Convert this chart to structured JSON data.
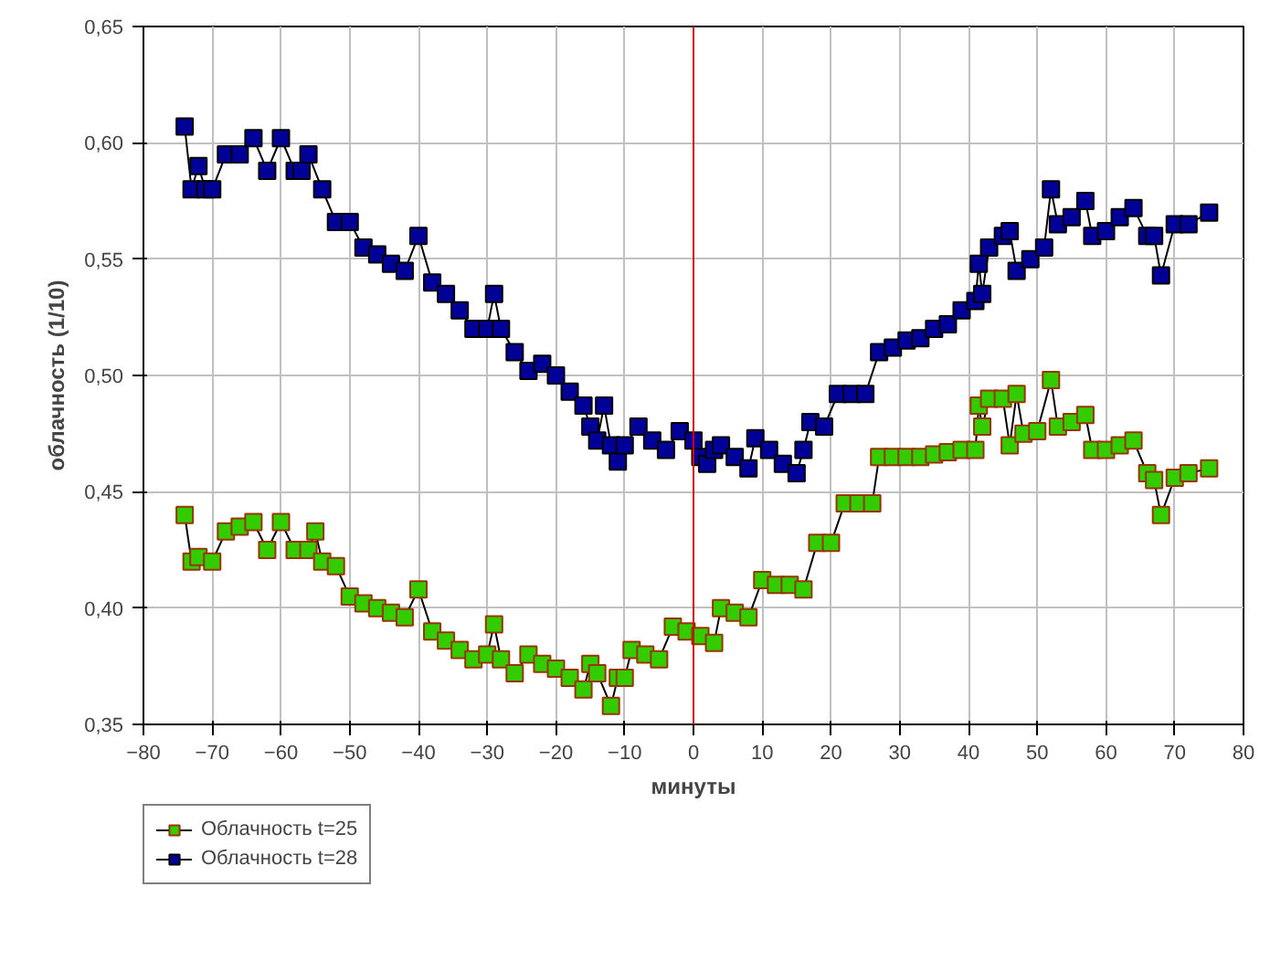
{
  "chart_data": {
    "type": "line",
    "xlabel": "минуты",
    "ylabel": "облачность (1/10)",
    "xlim": [
      -80,
      80
    ],
    "xticks": [
      -80,
      -70,
      -60,
      -50,
      -40,
      -30,
      -20,
      -10,
      0,
      10,
      20,
      30,
      40,
      50,
      60,
      70,
      80
    ],
    "ylim": [
      0.35,
      0.65
    ],
    "yticks": [
      {
        "value": 0.35,
        "label": "0,35"
      },
      {
        "value": 0.4,
        "label": "0,40"
      },
      {
        "value": 0.45,
        "label": "0,45"
      },
      {
        "value": 0.5,
        "label": "0,50"
      },
      {
        "value": 0.55,
        "label": "0,55"
      },
      {
        "value": 0.6,
        "label": "0,60"
      },
      {
        "value": 0.65,
        "label": "0,65"
      }
    ],
    "grid": true,
    "legend": "bottom left",
    "marker": "square",
    "line_style": "solid",
    "ref_lines": [
      {
        "axis": "x",
        "value": 0,
        "color": "#cc0000"
      }
    ],
    "series": [
      {
        "name": "Облачность t=25",
        "color": "#33cc00",
        "x": [
          -74,
          -73,
          -72,
          -70,
          -68,
          -66,
          -64,
          -62,
          -60,
          -58,
          -56,
          -55,
          -54,
          -52,
          -50,
          -48,
          -46,
          -44,
          -42,
          -40,
          -38,
          -36,
          -34,
          -32,
          -30,
          -29,
          -28,
          -26,
          -24,
          -22,
          -20,
          -18,
          -16,
          -15,
          -14,
          -12,
          -11,
          -10,
          -9,
          -7,
          -5,
          -3,
          -1,
          1,
          3,
          4,
          6,
          8,
          10,
          12,
          14,
          16,
          18,
          20,
          22,
          24,
          26,
          27,
          29,
          31,
          33,
          35,
          37,
          39,
          41,
          41.5,
          42,
          43,
          45,
          46,
          47,
          48,
          50,
          52,
          53,
          55,
          57,
          58,
          60,
          62,
          64,
          66,
          67,
          68,
          70,
          72,
          75
        ],
        "values": [
          0.44,
          0.42,
          0.422,
          0.42,
          0.433,
          0.435,
          0.437,
          0.425,
          0.437,
          0.425,
          0.425,
          0.433,
          0.42,
          0.418,
          0.405,
          0.402,
          0.4,
          0.398,
          0.396,
          0.408,
          0.39,
          0.386,
          0.382,
          0.378,
          0.38,
          0.393,
          0.378,
          0.372,
          0.38,
          0.376,
          0.374,
          0.37,
          0.365,
          0.376,
          0.372,
          0.358,
          0.37,
          0.37,
          0.382,
          0.38,
          0.378,
          0.392,
          0.39,
          0.388,
          0.385,
          0.4,
          0.398,
          0.396,
          0.412,
          0.41,
          0.41,
          0.408,
          0.428,
          0.428,
          0.445,
          0.445,
          0.445,
          0.465,
          0.465,
          0.465,
          0.465,
          0.466,
          0.467,
          0.468,
          0.468,
          0.487,
          0.478,
          0.49,
          0.49,
          0.47,
          0.492,
          0.475,
          0.476,
          0.498,
          0.478,
          0.48,
          0.483,
          0.468,
          0.468,
          0.47,
          0.472,
          0.458,
          0.455,
          0.44,
          0.456,
          0.458,
          0.46
        ]
      },
      {
        "name": "Облачность t=28",
        "color": "#000099",
        "x": [
          -74,
          -73,
          -72,
          -71,
          -70,
          -68,
          -66,
          -64,
          -62,
          -60,
          -58,
          -57,
          -56,
          -54,
          -52,
          -50,
          -48,
          -46,
          -44,
          -42,
          -40,
          -38,
          -36,
          -34,
          -32,
          -30,
          -29,
          -28,
          -26,
          -24,
          -22,
          -20,
          -18,
          -16,
          -15,
          -14,
          -13,
          -12,
          -11,
          -10,
          -8,
          -6,
          -4,
          -2,
          0,
          1,
          2,
          3,
          4,
          6,
          8,
          9,
          11,
          13,
          15,
          16,
          17,
          19,
          21,
          23,
          25,
          27,
          29,
          31,
          33,
          35,
          37,
          39,
          41,
          41.5,
          42,
          43,
          45,
          46,
          47,
          49,
          51,
          52,
          53,
          55,
          57,
          58,
          60,
          62,
          64,
          66,
          67,
          68,
          70,
          72,
          75
        ],
        "values": [
          0.607,
          0.58,
          0.59,
          0.58,
          0.58,
          0.595,
          0.595,
          0.602,
          0.588,
          0.602,
          0.588,
          0.588,
          0.595,
          0.58,
          0.566,
          0.566,
          0.555,
          0.552,
          0.548,
          0.545,
          0.56,
          0.54,
          0.535,
          0.528,
          0.52,
          0.52,
          0.535,
          0.52,
          0.51,
          0.502,
          0.505,
          0.5,
          0.493,
          0.487,
          0.478,
          0.472,
          0.487,
          0.47,
          0.463,
          0.47,
          0.478,
          0.472,
          0.468,
          0.476,
          0.472,
          0.465,
          0.462,
          0.468,
          0.47,
          0.465,
          0.46,
          0.473,
          0.468,
          0.462,
          0.458,
          0.468,
          0.48,
          0.478,
          0.492,
          0.492,
          0.492,
          0.51,
          0.512,
          0.515,
          0.516,
          0.52,
          0.522,
          0.528,
          0.532,
          0.548,
          0.535,
          0.555,
          0.56,
          0.562,
          0.545,
          0.55,
          0.555,
          0.58,
          0.565,
          0.568,
          0.575,
          0.56,
          0.562,
          0.568,
          0.572,
          0.56,
          0.56,
          0.543,
          0.565,
          0.565,
          0.57
        ]
      }
    ]
  }
}
